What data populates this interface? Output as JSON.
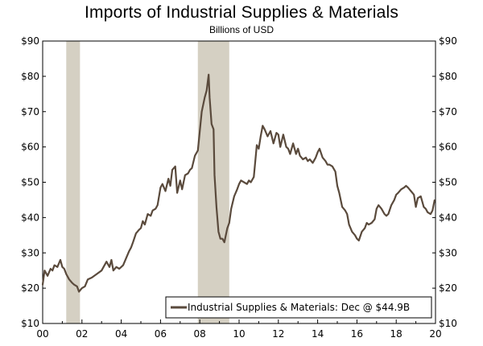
{
  "chart_data": {
    "type": "line",
    "title": "Imports of Industrial Supplies & Materials",
    "subtitle": "Billions of USD",
    "xlabel": "",
    "ylabel": "",
    "x_tick_labels": [
      "00",
      "02",
      "04",
      "06",
      "08",
      "10",
      "12",
      "14",
      "16",
      "18",
      "20"
    ],
    "y_tick_labels": [
      "$10",
      "$20",
      "$30",
      "$40",
      "$50",
      "$60",
      "$70",
      "$80",
      "$90"
    ],
    "y_ticks": [
      10,
      20,
      30,
      40,
      50,
      60,
      70,
      80,
      90
    ],
    "xlim": [
      2000.0,
      2020.0
    ],
    "ylim": [
      10,
      90
    ],
    "recessions": [
      [
        2001.2,
        2001.9
      ],
      [
        2007.9,
        2009.5
      ]
    ],
    "series": [
      {
        "name": "Industrial Supplies & Materials: Dec @ $44.9B",
        "color": "#5a4a3c",
        "x": [
          2000.0,
          2000.1,
          2000.25,
          2000.4,
          2000.5,
          2000.6,
          2000.75,
          2000.9,
          2001.0,
          2001.1,
          2001.2,
          2001.35,
          2001.5,
          2001.6,
          2001.75,
          2001.85,
          2002.0,
          2002.15,
          2002.3,
          2002.5,
          2002.75,
          2003.0,
          2003.1,
          2003.25,
          2003.4,
          2003.5,
          2003.6,
          2003.75,
          2003.9,
          2004.0,
          2004.1,
          2004.25,
          2004.4,
          2004.5,
          2004.6,
          2004.75,
          2004.9,
          2005.0,
          2005.1,
          2005.2,
          2005.35,
          2005.5,
          2005.6,
          2005.75,
          2005.85,
          2006.0,
          2006.1,
          2006.25,
          2006.4,
          2006.5,
          2006.6,
          2006.75,
          2006.85,
          2007.0,
          2007.1,
          2007.25,
          2007.4,
          2007.5,
          2007.6,
          2007.75,
          2007.9,
          2008.0,
          2008.1,
          2008.25,
          2008.35,
          2008.45,
          2008.5,
          2008.6,
          2008.7,
          2008.75,
          2008.85,
          2008.95,
          2009.05,
          2009.15,
          2009.25,
          2009.4,
          2009.5,
          2009.6,
          2009.75,
          2009.9,
          2010.0,
          2010.1,
          2010.25,
          2010.4,
          2010.5,
          2010.6,
          2010.75,
          2010.9,
          2011.0,
          2011.1,
          2011.2,
          2011.3,
          2011.45,
          2011.6,
          2011.75,
          2011.9,
          2012.0,
          2012.1,
          2012.25,
          2012.4,
          2012.5,
          2012.6,
          2012.75,
          2012.9,
          2013.0,
          2013.1,
          2013.25,
          2013.4,
          2013.5,
          2013.6,
          2013.75,
          2013.9,
          2014.0,
          2014.1,
          2014.25,
          2014.4,
          2014.5,
          2014.6,
          2014.75,
          2014.9,
          2015.0,
          2015.1,
          2015.25,
          2015.4,
          2015.5,
          2015.6,
          2015.75,
          2015.9,
          2016.0,
          2016.1,
          2016.25,
          2016.4,
          2016.5,
          2016.6,
          2016.75,
          2016.9,
          2017.0,
          2017.1,
          2017.25,
          2017.4,
          2017.5,
          2017.6,
          2017.75,
          2017.9,
          2018.0,
          2018.1,
          2018.25,
          2018.4,
          2018.5,
          2018.6,
          2018.75,
          2018.9,
          2019.0,
          2019.1,
          2019.25,
          2019.4,
          2019.5,
          2019.6,
          2019.75,
          2019.85,
          2019.95
        ],
        "values": [
          21.0,
          25.0,
          23.5,
          25.5,
          25.0,
          26.5,
          26.0,
          28.0,
          26.0,
          25.5,
          24.0,
          22.5,
          21.5,
          21.0,
          20.5,
          19.0,
          20.0,
          20.5,
          22.5,
          23.0,
          24.0,
          25.0,
          26.0,
          27.5,
          26.0,
          28.0,
          25.0,
          26.0,
          25.5,
          26.0,
          26.5,
          28.5,
          30.5,
          31.5,
          33.0,
          35.5,
          36.5,
          37.0,
          39.0,
          38.0,
          41.0,
          40.5,
          42.0,
          42.5,
          43.5,
          48.5,
          49.5,
          47.5,
          51.0,
          49.0,
          53.5,
          54.5,
          47.0,
          50.5,
          48.0,
          52.0,
          52.5,
          53.5,
          54.0,
          57.5,
          59.0,
          64.5,
          70.0,
          74.0,
          76.0,
          80.5,
          74.0,
          66.5,
          65.0,
          52.0,
          43.0,
          36.0,
          34.0,
          34.0,
          33.0,
          37.0,
          38.5,
          42.5,
          46.0,
          48.0,
          49.5,
          50.5,
          50.0,
          49.5,
          50.5,
          50.0,
          51.5,
          60.5,
          59.5,
          63.0,
          66.0,
          65.0,
          63.0,
          64.5,
          61.0,
          64.0,
          63.5,
          60.0,
          63.5,
          60.0,
          59.5,
          58.0,
          61.0,
          58.0,
          59.5,
          57.5,
          56.5,
          57.0,
          56.0,
          56.5,
          55.5,
          57.0,
          58.5,
          59.5,
          57.0,
          56.0,
          55.0,
          55.0,
          54.5,
          53.0,
          49.0,
          47.0,
          43.0,
          42.0,
          41.0,
          38.0,
          36.0,
          35.0,
          34.0,
          33.5,
          36.0,
          37.0,
          38.5,
          38.0,
          38.5,
          39.5,
          42.5,
          43.5,
          42.5,
          41.0,
          40.5,
          41.0,
          43.5,
          45.0,
          46.5,
          47.0,
          48.0,
          48.5,
          49.0,
          48.5,
          47.5,
          46.5,
          43.0,
          45.5,
          46.0,
          43.0,
          42.5,
          41.5,
          41.0,
          42.0,
          44.9
        ]
      }
    ],
    "legend": {
      "label": "Industrial Supplies & Materials: Dec @ $44.9B",
      "position": "bottom-right"
    }
  }
}
